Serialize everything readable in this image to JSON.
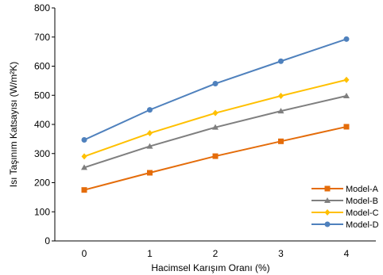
{
  "chart_data": {
    "type": "line",
    "title": "",
    "xlabel": "Hacimsel Karışım Oranı (%)",
    "ylabel": "Isı Taşınım Katsayısı (W/m²K)",
    "x": [
      0,
      1,
      2,
      3,
      4
    ],
    "x_tick_labels": [
      "0",
      "1",
      "2",
      "3",
      "4"
    ],
    "ylim": [
      0,
      800
    ],
    "y_tick_labels": [
      "0",
      "100",
      "200",
      "300",
      "400",
      "500",
      "600",
      "700",
      "800"
    ],
    "grid": false,
    "legend_position": "bottom-right",
    "series": [
      {
        "name": "Model-A",
        "color": "#E46C0A",
        "marker": "square",
        "values": [
          175,
          234,
          291,
          342,
          392
        ]
      },
      {
        "name": "Model-B",
        "color": "#7F7F7F",
        "marker": "triangle",
        "values": [
          252,
          325,
          390,
          446,
          498
        ]
      },
      {
        "name": "Model-C",
        "color": "#FFC000",
        "marker": "diamond",
        "values": [
          290,
          370,
          439,
          498,
          553
        ]
      },
      {
        "name": "Model-D",
        "color": "#4F81BD",
        "marker": "circle",
        "values": [
          347,
          450,
          540,
          617,
          693
        ]
      }
    ]
  }
}
